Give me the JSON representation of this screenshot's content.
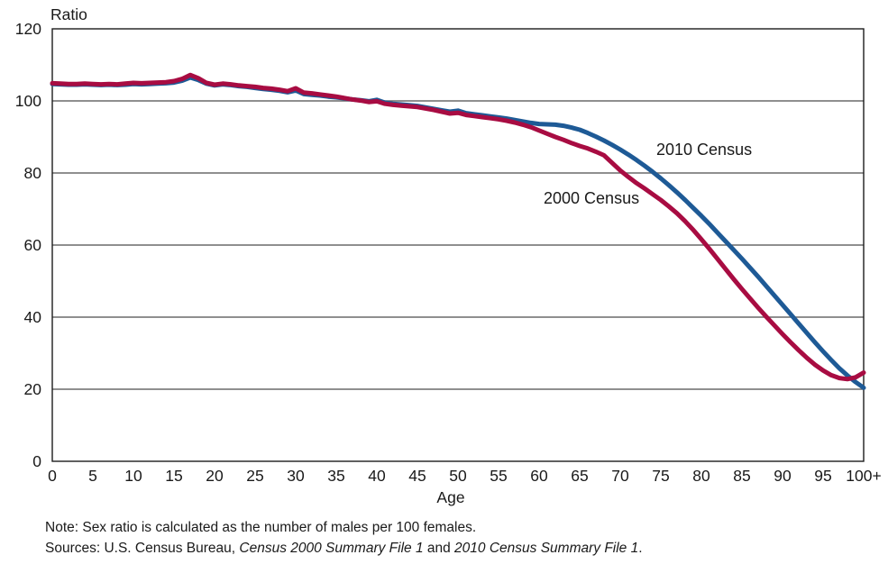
{
  "chart_data": {
    "type": "line",
    "title": "",
    "ylabel": "Ratio",
    "xlabel": "Age",
    "ylim": [
      0,
      120
    ],
    "xlim": [
      0,
      100
    ],
    "y_ticks": [
      0,
      20,
      40,
      60,
      80,
      100,
      120
    ],
    "x_tick_labels": [
      "0",
      "5",
      "10",
      "15",
      "20",
      "25",
      "30",
      "35",
      "40",
      "45",
      "50",
      "55",
      "60",
      "65",
      "70",
      "75",
      "80",
      "85",
      "90",
      "95",
      "100+"
    ],
    "grid": "horizontal-gridlines-on",
    "legend": "inline-annotations",
    "x": [
      0,
      1,
      2,
      3,
      4,
      5,
      6,
      7,
      8,
      9,
      10,
      11,
      12,
      13,
      14,
      15,
      16,
      17,
      18,
      19,
      20,
      21,
      22,
      23,
      24,
      25,
      26,
      27,
      28,
      29,
      30,
      31,
      32,
      33,
      34,
      35,
      36,
      37,
      38,
      39,
      40,
      41,
      42,
      43,
      44,
      45,
      46,
      47,
      48,
      49,
      50,
      51,
      52,
      53,
      54,
      55,
      56,
      57,
      58,
      59,
      60,
      61,
      62,
      63,
      64,
      65,
      66,
      67,
      68,
      69,
      70,
      71,
      72,
      73,
      74,
      75,
      76,
      77,
      78,
      79,
      80,
      81,
      82,
      83,
      84,
      85,
      86,
      87,
      88,
      89,
      90,
      91,
      92,
      93,
      94,
      95,
      96,
      97,
      98,
      99,
      100
    ],
    "series": [
      {
        "name": "2000 Census",
        "color": "#A80C42",
        "values": [
          104.9,
          104.8,
          104.7,
          104.7,
          104.8,
          104.7,
          104.6,
          104.7,
          104.6,
          104.8,
          105.0,
          104.9,
          105.0,
          105.1,
          105.2,
          105.5,
          106.1,
          107.2,
          106.3,
          105.0,
          104.5,
          104.8,
          104.6,
          104.3,
          104.1,
          103.9,
          103.6,
          103.4,
          103.1,
          102.7,
          103.5,
          102.3,
          102.1,
          101.8,
          101.5,
          101.2,
          100.8,
          100.4,
          100.1,
          99.7,
          99.9,
          99.2,
          98.9,
          98.7,
          98.5,
          98.3,
          97.9,
          97.5,
          97.0,
          96.5,
          96.7,
          96.1,
          95.8,
          95.5,
          95.2,
          94.9,
          94.5,
          94.0,
          93.4,
          92.7,
          91.8,
          90.9,
          90.0,
          89.2,
          88.3,
          87.5,
          86.8,
          85.9,
          84.9,
          82.8,
          80.7,
          78.9,
          77.2,
          75.7,
          74.1,
          72.5,
          70.7,
          68.8,
          66.6,
          64.2,
          61.6,
          58.9,
          56.1,
          53.3,
          50.5,
          47.8,
          45.2,
          42.6,
          40.1,
          37.7,
          35.3,
          33.0,
          30.8,
          28.7,
          26.8,
          25.2,
          23.9,
          23.1,
          22.8,
          23.3,
          24.6
        ]
      },
      {
        "name": "2010 Census",
        "color": "#1E5A96",
        "values": [
          104.7,
          104.6,
          104.5,
          104.5,
          104.6,
          104.5,
          104.4,
          104.5,
          104.4,
          104.5,
          104.7,
          104.6,
          104.7,
          104.8,
          104.9,
          105.1,
          105.6,
          106.5,
          105.8,
          104.8,
          104.3,
          104.6,
          104.4,
          104.1,
          103.9,
          103.6,
          103.3,
          103.1,
          102.8,
          102.4,
          102.9,
          101.9,
          101.7,
          101.5,
          101.2,
          101.0,
          100.7,
          100.4,
          100.2,
          99.9,
          100.3,
          99.5,
          99.2,
          99.0,
          98.8,
          98.6,
          98.2,
          97.8,
          97.4,
          97.0,
          97.3,
          96.6,
          96.3,
          96.0,
          95.7,
          95.4,
          95.1,
          94.7,
          94.3,
          93.9,
          93.6,
          93.5,
          93.4,
          93.1,
          92.6,
          92.0,
          91.1,
          90.1,
          89.0,
          87.8,
          86.5,
          85.1,
          83.6,
          82.0,
          80.3,
          78.5,
          76.6,
          74.6,
          72.5,
          70.3,
          68.1,
          65.8,
          63.4,
          61.0,
          58.6,
          56.2,
          53.7,
          51.2,
          48.6,
          46.0,
          43.4,
          40.8,
          38.2,
          35.6,
          33.0,
          30.5,
          28.1,
          25.8,
          23.8,
          22.0,
          20.4
        ]
      }
    ]
  },
  "annotations": {
    "label_2010": "2010 Census",
    "label_2000": "2000 Census"
  },
  "notes": {
    "note": "Note: Sex ratio is calculated as the number of males per 100 females.",
    "sources_prefix": "Sources: U.S. Census Bureau, ",
    "sources_italic_1": "Census 2000 Summary File 1",
    "sources_and": " and ",
    "sources_italic_2": "2010 Census Summary File 1",
    "sources_period": "."
  }
}
